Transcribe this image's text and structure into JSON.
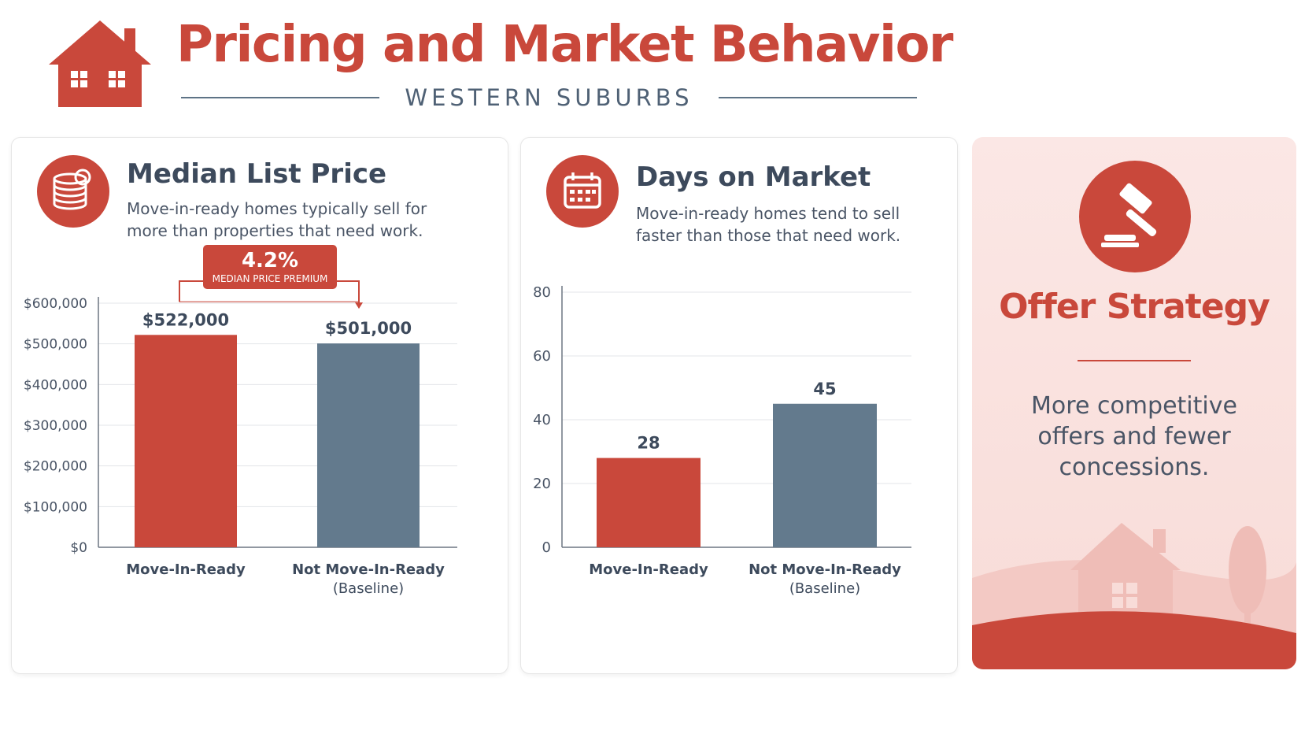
{
  "header": {
    "title": "Pricing and Market Behavior",
    "subtitle": "WESTERN SUBURBS",
    "icon": "house-icon"
  },
  "colors": {
    "accent": "#c9483b",
    "slate": "#637a8d",
    "text": "#3d4a5c",
    "offer_bg": "#fbe7e5"
  },
  "price_card": {
    "icon": "coins-icon",
    "title": "Median List Price",
    "description": "Move-in-ready homes typically sell for more than properties that need work.",
    "premium": {
      "value": "4.2%",
      "label": "MEDIAN PRICE PREMIUM"
    }
  },
  "days_card": {
    "icon": "calendar-icon",
    "title": "Days on Market",
    "description": "Move-in-ready homes tend to sell faster than those that need work."
  },
  "offer_card": {
    "icon": "gavel-icon",
    "title": "Offer Strategy",
    "description": "More competitive offers and fewer concessions."
  },
  "chart_data": [
    {
      "type": "bar",
      "title": "Median List Price",
      "categories": [
        [
          "Move-In-Ready"
        ],
        [
          "Not Move-In-Ready",
          "(Baseline)"
        ]
      ],
      "values": [
        522000,
        501000
      ],
      "data_labels": [
        "$522,000",
        "$501,000"
      ],
      "colors": [
        "#c9483b",
        "#637a8d"
      ],
      "yticks": [
        0,
        100000,
        200000,
        300000,
        400000,
        500000,
        600000
      ],
      "ytick_labels": [
        "$0",
        "$100,000",
        "$200,000",
        "$300,000",
        "$400,000",
        "$500,000",
        "$600,000"
      ],
      "ylim": [
        0,
        600000
      ],
      "grid": true,
      "annotation": "4.2% MEDIAN PRICE PREMIUM"
    },
    {
      "type": "bar",
      "title": "Days on Market",
      "categories": [
        [
          "Move-In-Ready"
        ],
        [
          "Not Move-In-Ready",
          "(Baseline)"
        ]
      ],
      "values": [
        28,
        45
      ],
      "data_labels": [
        "28",
        "45"
      ],
      "colors": [
        "#c9483b",
        "#637a8d"
      ],
      "yticks": [
        0,
        20,
        40,
        60,
        80
      ],
      "ytick_labels": [
        "0",
        "20",
        "40",
        "60",
        "80"
      ],
      "ylim": [
        0,
        80
      ],
      "grid": true
    }
  ]
}
